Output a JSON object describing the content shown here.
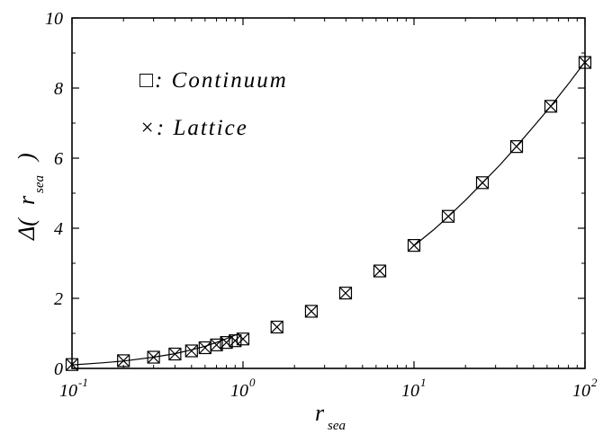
{
  "chart_data": {
    "type": "scatter",
    "x_scale": "log",
    "xlim": [
      0.1,
      100
    ],
    "ylim": [
      0,
      10
    ],
    "x_ticks": [
      {
        "base": "10",
        "exp": "-1",
        "value": 0.1
      },
      {
        "base": "10",
        "exp": "0",
        "value": 1
      },
      {
        "base": "10",
        "exp": "1",
        "value": 10
      },
      {
        "base": "10",
        "exp": "2",
        "value": 100
      }
    ],
    "y_ticks": [
      "0",
      "2",
      "4",
      "6",
      "8",
      "10"
    ],
    "xlabel": {
      "main": "r",
      "sub": "sea"
    },
    "ylabel": {
      "prefix": "Δ(",
      "var": "r",
      "sub": "sea",
      "suffix": ")"
    },
    "legend": {
      "placement": "top-left",
      "entries": [
        {
          "symbol": "□",
          "label": ": Continuum",
          "marker": "square"
        },
        {
          "symbol": "×",
          "label": ": Lattice",
          "marker": "cross"
        }
      ]
    },
    "series": [
      {
        "name": "Continuum",
        "marker": "square",
        "x": [
          0.1,
          0.2,
          0.3,
          0.4,
          0.5,
          0.6,
          0.7,
          0.8,
          0.9,
          1.0,
          1.58,
          2.51,
          3.98,
          6.31,
          10.0,
          15.85,
          25.12,
          39.81,
          63.1,
          100.0
        ],
        "y": [
          0.11,
          0.22,
          0.32,
          0.41,
          0.5,
          0.59,
          0.67,
          0.74,
          0.79,
          0.84,
          1.18,
          1.63,
          2.15,
          2.78,
          3.51,
          4.34,
          5.3,
          6.33,
          7.48,
          8.73
        ]
      },
      {
        "name": "Lattice",
        "marker": "cross",
        "x": [
          0.1,
          0.2,
          0.3,
          0.4,
          0.5,
          0.6,
          0.7,
          0.8,
          0.9,
          1.0,
          1.58,
          2.51,
          3.98,
          6.31,
          10.0,
          15.85,
          25.12,
          39.81,
          63.1,
          100.0
        ],
        "y": [
          0.11,
          0.22,
          0.32,
          0.41,
          0.5,
          0.59,
          0.67,
          0.74,
          0.79,
          0.84,
          1.18,
          1.63,
          2.15,
          2.78,
          3.51,
          4.34,
          5.3,
          6.33,
          7.48,
          8.73
        ]
      }
    ],
    "fit_curves": [
      {
        "x": [
          0.1,
          0.15,
          0.2,
          0.3,
          0.4,
          0.5,
          0.6,
          0.7,
          0.8,
          0.9,
          0.95
        ],
        "y": [
          0.1,
          0.16,
          0.21,
          0.32,
          0.42,
          0.53,
          0.63,
          0.74,
          0.85,
          0.95,
          1.0
        ]
      },
      {
        "x": [
          10,
          13,
          16,
          20,
          25,
          32,
          40,
          50,
          63,
          80,
          100
        ],
        "y": [
          3.5,
          3.95,
          4.35,
          4.8,
          5.28,
          5.82,
          6.35,
          6.9,
          7.48,
          8.12,
          8.75
        ]
      }
    ]
  }
}
